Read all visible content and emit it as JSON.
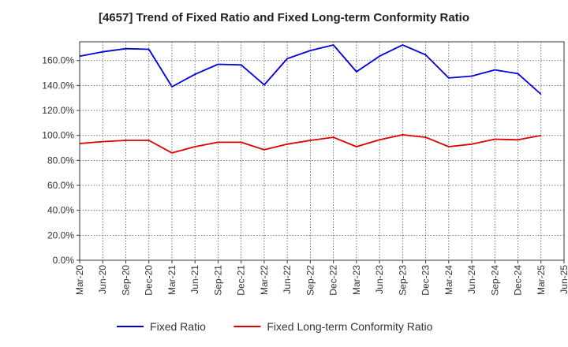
{
  "chart_data": {
    "type": "line",
    "title": "[4657]  Trend of Fixed Ratio and Fixed Long-term Conformity Ratio",
    "xlabel": "",
    "ylabel": "",
    "x": [
      "Mar-20",
      "Jun-20",
      "Sep-20",
      "Dec-20",
      "Mar-21",
      "Jun-21",
      "Sep-21",
      "Dec-21",
      "Mar-22",
      "Jun-22",
      "Sep-22",
      "Dec-22",
      "Mar-23",
      "Jun-23",
      "Sep-23",
      "Dec-23",
      "Mar-24",
      "Jun-24",
      "Sep-24",
      "Dec-24",
      "Mar-25",
      "Jun-25"
    ],
    "ylim": [
      0,
      175
    ],
    "yticks": [
      0,
      20,
      40,
      60,
      80,
      100,
      120,
      140,
      160
    ],
    "ytick_labels": [
      "0.0%",
      "20.0%",
      "40.0%",
      "60.0%",
      "80.0%",
      "100.0%",
      "120.0%",
      "140.0%",
      "160.0%"
    ],
    "grid": true,
    "legend_position": "bottom",
    "series": [
      {
        "name": "Fixed Ratio",
        "color": "#0000dd",
        "values": [
          163.5,
          167.0,
          169.5,
          169.0,
          139.0,
          149.0,
          157.0,
          156.5,
          140.5,
          161.5,
          168.0,
          172.5,
          151.0,
          163.5,
          172.5,
          164.5,
          146.0,
          147.5,
          152.5,
          149.5,
          133.0,
          null
        ]
      },
      {
        "name": "Fixed Long-term Conformity Ratio",
        "color": "#dd0000",
        "values": [
          93.5,
          95.0,
          96.0,
          96.0,
          86.0,
          91.0,
          94.5,
          94.5,
          88.5,
          93.0,
          96.0,
          98.5,
          91.0,
          96.5,
          100.5,
          98.5,
          91.0,
          93.0,
          97.0,
          96.5,
          100.0,
          null
        ]
      }
    ]
  }
}
